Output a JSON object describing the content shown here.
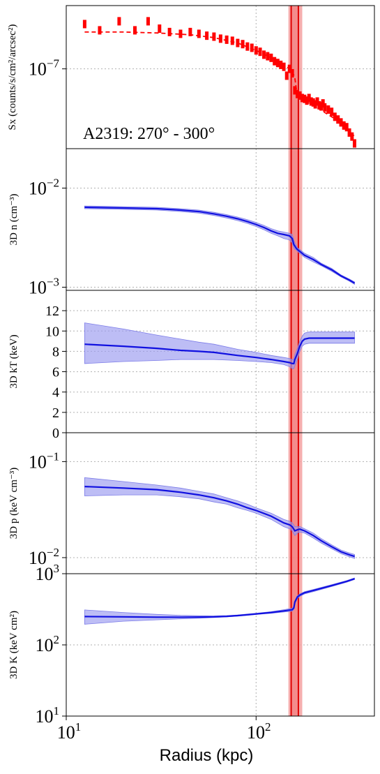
{
  "colors": {
    "profile": "#1010e0",
    "band": "#9a9af0",
    "data": "#ff0000",
    "front_line": "#e00000",
    "front_band": "#f5a0a0",
    "grid": "#b0b0b0"
  },
  "chart_data": {
    "type": "line",
    "xlabel": "Radius (kpc)",
    "xscale": "log",
    "xlim": [
      10,
      420
    ],
    "x_ticks": [
      {
        "value": 10,
        "base": "10",
        "exp": "1"
      },
      {
        "value": 100,
        "base": "10",
        "exp": "2"
      }
    ],
    "grid": true,
    "front": {
      "center": 160,
      "inner_line": 153,
      "outer_line": 167,
      "band": [
        148,
        175
      ]
    },
    "panels": [
      {
        "id": "sx",
        "ylabel": "Sx (counts/s/cm²/arcsec²)",
        "yscale": "log",
        "ylim": [
          1.5e-08,
          4.5e-07
        ],
        "y_ticks": [
          {
            "value": 1e-07,
            "base": "10",
            "exp": "−7"
          }
        ],
        "annotation": "A2319: 270° - 300°",
        "model": {
          "name": "",
          "x": [
            12.5,
            20,
            30,
            45,
            60,
            80,
            100,
            120,
            140,
            150,
            155,
            160,
            165,
            175,
            200,
            250,
            300,
            330
          ],
          "y": [
            2.4e-07,
            2.4e-07,
            2.35e-07,
            2.25e-07,
            2.1e-07,
            1.85e-07,
            1.55e-07,
            1.3e-07,
            1.1e-07,
            1e-07,
            9.5e-08,
            8e-08,
            5.2e-08,
            4.8e-08,
            4.2e-08,
            3.2e-08,
            2.5e-08,
            2e-08
          ]
        },
        "data_points": {
          "name": "",
          "x": [
            12.5,
            15,
            19,
            23,
            27,
            31,
            35,
            40,
            45,
            50,
            55,
            60,
            65,
            70,
            75,
            80,
            85,
            90,
            95,
            100,
            105,
            110,
            115,
            120,
            125,
            130,
            135,
            140,
            145,
            150,
            155,
            160,
            165,
            170,
            175,
            180,
            185,
            190,
            195,
            200,
            205,
            210,
            215,
            220,
            225,
            230,
            240,
            250,
            260,
            270,
            280,
            290,
            300,
            310,
            320,
            330
          ],
          "y": [
            2.9e-07,
            2.5e-07,
            3.1e-07,
            2.5e-07,
            3.1e-07,
            2.6e-07,
            2.4e-07,
            2.3e-07,
            2.4e-07,
            2.3e-07,
            2.2e-07,
            2.15e-07,
            2.05e-07,
            2e-07,
            1.95e-07,
            1.85e-07,
            1.8e-07,
            1.7e-07,
            1.65e-07,
            1.55e-07,
            1.5e-07,
            1.4e-07,
            1.35e-07,
            1.3e-07,
            1.2e-07,
            1.15e-07,
            1.1e-07,
            1.05e-07,
            8.5e-08,
            1e-07,
            9e-08,
            6e-08,
            5.5e-08,
            5.3e-08,
            5e-08,
            4.9e-08,
            4.7e-08,
            5e-08,
            4.6e-08,
            4.5e-08,
            4.3e-08,
            4.6e-08,
            4.2e-08,
            4.1e-08,
            4.4e-08,
            4e-08,
            3.8e-08,
            3.6e-08,
            3.2e-08,
            3e-08,
            2.8e-08,
            2.6e-08,
            2.5e-08,
            2.2e-08,
            2e-08,
            1.7e-08
          ]
        }
      },
      {
        "id": "n",
        "ylabel": "3D n (cm⁻³)",
        "yscale": "log",
        "ylim": [
          0.00093,
          0.025
        ],
        "y_ticks": [
          {
            "value": 0.01,
            "base": "10",
            "exp": "−2"
          },
          {
            "value": 0.001,
            "base": "10",
            "exp": "−3"
          }
        ],
        "series": [
          {
            "name": "",
            "x": [
              12.5,
              20,
              30,
              40,
              50,
              60,
              70,
              80,
              90,
              100,
              110,
              120,
              130,
              140,
              150,
              155,
              158,
              160,
              162,
              165,
              170,
              180,
              200,
              220,
              250,
              280,
              310,
              330
            ],
            "y": [
              0.0064,
              0.0063,
              0.0062,
              0.006,
              0.0058,
              0.0055,
              0.0052,
              0.0049,
              0.0046,
              0.0043,
              0.004,
              0.0037,
              0.0035,
              0.0034,
              0.0033,
              0.0031,
              0.0027,
              0.0026,
              0.0025,
              0.0024,
              0.0023,
              0.0021,
              0.0019,
              0.0017,
              0.0015,
              0.0013,
              0.00118,
              0.0011
            ],
            "lower": [
              0.0062,
              0.0061,
              0.006,
              0.0058,
              0.0056,
              0.0053,
              0.005,
              0.0047,
              0.0044,
              0.0041,
              0.0038,
              0.0035,
              0.0033,
              0.0031,
              0.003,
              0.0028,
              0.0025,
              0.0024,
              0.0024,
              0.0023,
              0.0022,
              0.002,
              0.0018,
              0.00165,
              0.00145,
              0.00127,
              0.00115,
              0.00107
            ],
            "upper": [
              0.0066,
              0.0065,
              0.0064,
              0.0062,
              0.006,
              0.0057,
              0.0054,
              0.0051,
              0.0048,
              0.0045,
              0.0042,
              0.0039,
              0.0037,
              0.0036,
              0.0035,
              0.0034,
              0.003,
              0.0028,
              0.0027,
              0.0025,
              0.0024,
              0.0022,
              0.002,
              0.00175,
              0.00155,
              0.00133,
              0.00121,
              0.00113
            ]
          }
        ]
      },
      {
        "id": "kT",
        "ylabel": "3D kT (keV)",
        "yscale": "linear",
        "ylim": [
          0,
          14
        ],
        "y_ticks": [
          {
            "value": 0,
            "label": "0"
          },
          {
            "value": 2,
            "label": "2"
          },
          {
            "value": 4,
            "label": "4"
          },
          {
            "value": 6,
            "label": "6"
          },
          {
            "value": 8,
            "label": "8"
          },
          {
            "value": 10,
            "label": "10"
          },
          {
            "value": 12,
            "label": "12"
          }
        ],
        "series": [
          {
            "name": "",
            "x": [
              12.5,
              20,
              30,
              40,
              50,
              60,
              80,
              100,
              120,
              140,
              150,
              155,
              158,
              160,
              165,
              170,
              175,
              180,
              190,
              200,
              250,
              300,
              330
            ],
            "y": [
              8.7,
              8.5,
              8.3,
              8.1,
              8.0,
              7.9,
              7.6,
              7.4,
              7.2,
              7.0,
              6.9,
              6.8,
              6.8,
              7.2,
              7.8,
              8.5,
              9.0,
              9.2,
              9.3,
              9.3,
              9.3,
              9.3,
              9.3
            ],
            "lower": [
              6.8,
              7.0,
              7.1,
              7.2,
              7.2,
              7.2,
              7.1,
              7.0,
              6.9,
              6.7,
              6.5,
              6.3,
              6.3,
              6.6,
              7.2,
              8.0,
              8.5,
              8.7,
              8.8,
              8.8,
              8.8,
              8.8,
              8.8
            ],
            "upper": [
              10.8,
              10.2,
              9.6,
              9.2,
              8.9,
              8.7,
              8.2,
              7.9,
              7.6,
              7.4,
              7.3,
              7.2,
              7.2,
              7.7,
              8.3,
              9.0,
              9.5,
              9.8,
              9.9,
              9.9,
              9.9,
              9.9,
              9.9
            ]
          }
        ]
      },
      {
        "id": "p",
        "ylabel": "3D p (keV cm⁻³)",
        "yscale": "log",
        "ylim": [
          0.0068,
          0.2
        ],
        "y_ticks": [
          {
            "value": 0.1,
            "base": "10",
            "exp": "−1"
          },
          {
            "value": 0.01,
            "base": "10",
            "exp": "−2"
          }
        ],
        "series": [
          {
            "name": "",
            "x": [
              12.5,
              20,
              30,
              40,
              50,
              60,
              70,
              80,
              90,
              100,
              120,
              140,
              150,
              155,
              160,
              165,
              170,
              180,
              200,
              220,
              250,
              280,
              310,
              330
            ],
            "y": [
              0.055,
              0.053,
              0.051,
              0.048,
              0.045,
              0.042,
              0.039,
              0.036,
              0.033,
              0.031,
              0.027,
              0.023,
              0.022,
              0.021,
              0.019,
              0.0195,
              0.0198,
              0.019,
              0.017,
              0.015,
              0.013,
              0.0115,
              0.0107,
              0.0103
            ],
            "lower": [
              0.044,
              0.045,
              0.045,
              0.043,
              0.041,
              0.038,
              0.036,
              0.033,
              0.031,
              0.029,
              0.025,
              0.021,
              0.02,
              0.019,
              0.017,
              0.018,
              0.0185,
              0.018,
              0.016,
              0.0142,
              0.0124,
              0.011,
              0.0102,
              0.0098
            ],
            "upper": [
              0.068,
              0.062,
              0.057,
              0.053,
              0.049,
              0.046,
              0.042,
              0.039,
              0.036,
              0.033,
              0.029,
              0.025,
              0.024,
              0.023,
              0.021,
              0.021,
              0.0211,
              0.02,
              0.018,
              0.0158,
              0.0136,
              0.012,
              0.0112,
              0.0108
            ]
          }
        ]
      },
      {
        "id": "K",
        "ylabel": "3D K (keV cm²)",
        "yscale": "log",
        "ylim": [
          10,
          1000
        ],
        "y_ticks": [
          {
            "value": 1000,
            "base": "10",
            "exp": "3"
          },
          {
            "value": 100,
            "base": "10",
            "exp": "2"
          },
          {
            "value": 10,
            "base": "10",
            "exp": "1"
          }
        ],
        "series": [
          {
            "name": "",
            "x": [
              12.5,
              20,
              30,
              40,
              50,
              60,
              70,
              80,
              90,
              100,
              120,
              140,
              150,
              155,
              158,
              160,
              165,
              170,
              180,
              200,
              250,
              300,
              330
            ],
            "y": [
              250,
              248,
              245,
              245,
              246,
              248,
              252,
              258,
              265,
              272,
              285,
              300,
              308,
              312,
              330,
              400,
              470,
              500,
              540,
              580,
              680,
              780,
              850
            ],
            "lower": [
              195,
              215,
              225,
              232,
              237,
              242,
              247,
              253,
              260,
              267,
              278,
              290,
              295,
              298,
              315,
              380,
              450,
              480,
              520,
              560,
              660,
              760,
              830
            ],
            "upper": [
              310,
              285,
              268,
              260,
              257,
              256,
              258,
              263,
              271,
              278,
              293,
              312,
              322,
              328,
              345,
              420,
              490,
              520,
              560,
              600,
              700,
              800,
              870
            ]
          }
        ]
      }
    ]
  }
}
